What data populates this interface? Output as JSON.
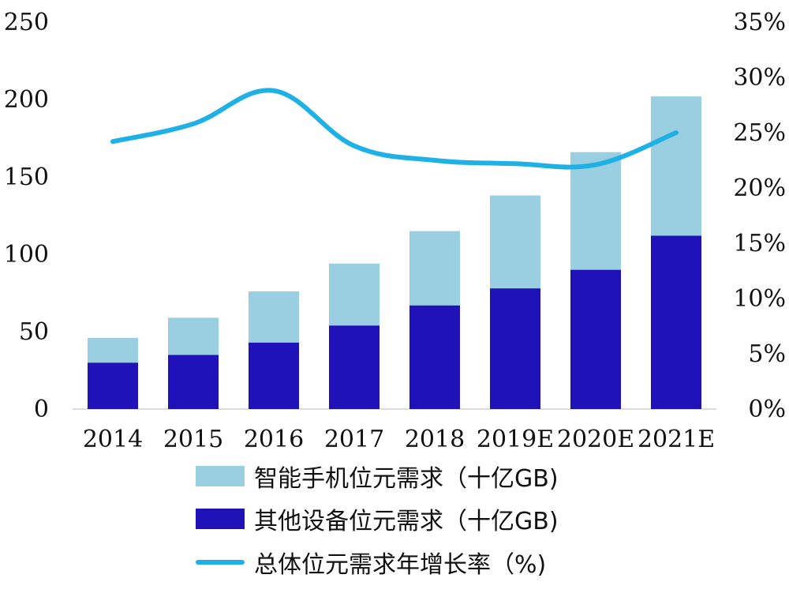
{
  "chart_data": {
    "type": "bar",
    "stacked": true,
    "categories": [
      "2014",
      "2015",
      "2016",
      "2017",
      "2018",
      "2019E",
      "2020E",
      "2021E"
    ],
    "series": [
      {
        "name": "其他设备位元需求（十亿GB)",
        "type": "bar",
        "axis": "left",
        "color": "#1e12b8",
        "values": [
          30,
          35,
          43,
          54,
          67,
          78,
          90,
          112
        ]
      },
      {
        "name": "智能手机位元需求（十亿GB)",
        "type": "bar",
        "axis": "left",
        "color": "#99cfe0",
        "values": [
          16,
          24,
          33,
          40,
          48,
          60,
          76,
          90
        ]
      },
      {
        "name": "总体位元需求年增长率（%)",
        "type": "line",
        "axis": "right",
        "color": "#1fb1e6",
        "values": [
          24.2,
          25.8,
          28.8,
          23.8,
          22.5,
          22.2,
          22.1,
          25.0
        ]
      }
    ],
    "y_left": {
      "min": 0,
      "max": 250,
      "ticks": [
        "0",
        "50",
        "100",
        "150",
        "200",
        "250"
      ]
    },
    "y_right": {
      "min": 0,
      "max": 35,
      "ticks": [
        "0%",
        "5%",
        "10%",
        "15%",
        "20%",
        "25%",
        "30%",
        "35%"
      ]
    },
    "grid": false,
    "legend_position": "bottom"
  },
  "legend": {
    "items": [
      {
        "label": "智能手机位元需求（十亿GB)",
        "color": "#99cfe0",
        "kind": "box"
      },
      {
        "label": "其他设备位元需求（十亿GB)",
        "color": "#1e12b8",
        "kind": "box"
      },
      {
        "label": "总体位元需求年增长率（%)",
        "color": "#1fb1e6",
        "kind": "line"
      }
    ]
  }
}
